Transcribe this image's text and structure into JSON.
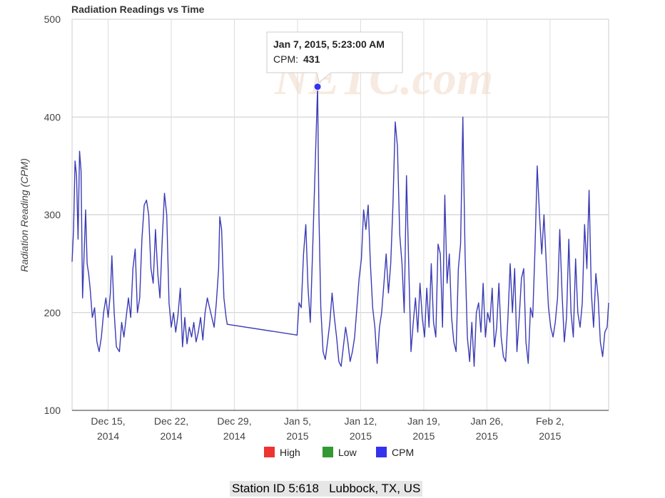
{
  "chart_data": {
    "type": "line",
    "title": "Radiation Readings vs Time",
    "ylabel": "Radiation Reading (CPM)",
    "xlabel": "",
    "ylim": [
      100,
      500
    ],
    "yticks": [
      100,
      200,
      300,
      400,
      500
    ],
    "xlim": [
      "2014-12-11T00:00",
      "2015-02-08T12:00"
    ],
    "xticks": [
      {
        "date": "2014-12-15",
        "label1": "Dec 15,",
        "label2": "2014"
      },
      {
        "date": "2014-12-22",
        "label1": "Dec 22,",
        "label2": "2014"
      },
      {
        "date": "2014-12-29",
        "label1": "Dec 29,",
        "label2": "2014"
      },
      {
        "date": "2015-01-05",
        "label1": "Jan 5,",
        "label2": "2015"
      },
      {
        "date": "2015-01-12",
        "label1": "Jan 12,",
        "label2": "2015"
      },
      {
        "date": "2015-01-19",
        "label1": "Jan 19,",
        "label2": "2015"
      },
      {
        "date": "2015-01-26",
        "label1": "Jan 26,",
        "label2": "2015"
      },
      {
        "date": "2015-02-02",
        "label1": "Feb 2,",
        "label2": "2015"
      }
    ],
    "grid": true,
    "legend": {
      "placement": "bottom",
      "items": [
        {
          "name": "High",
          "color": "#ee3333"
        },
        {
          "name": "Low",
          "color": "#339933"
        },
        {
          "name": "CPM",
          "color": "#3333ee"
        }
      ]
    },
    "series": [
      {
        "name": "CPM",
        "color": "#3b3bb5",
        "points": [
          [
            "2014-12-11T00:00",
            252
          ],
          [
            "2014-12-11T04:00",
            285
          ],
          [
            "2014-12-11T08:00",
            355
          ],
          [
            "2014-12-11T12:00",
            340
          ],
          [
            "2014-12-11T16:00",
            275
          ],
          [
            "2014-12-11T20:00",
            365
          ],
          [
            "2014-12-12T00:00",
            345
          ],
          [
            "2014-12-12T04:00",
            215
          ],
          [
            "2014-12-12T08:00",
            260
          ],
          [
            "2014-12-12T12:00",
            305
          ],
          [
            "2014-12-12T16:00",
            250
          ],
          [
            "2014-12-12T20:00",
            240
          ],
          [
            "2014-12-13T00:00",
            225
          ],
          [
            "2014-12-13T06:00",
            195
          ],
          [
            "2014-12-13T12:00",
            205
          ],
          [
            "2014-12-13T18:00",
            170
          ],
          [
            "2014-12-14T00:00",
            160
          ],
          [
            "2014-12-14T06:00",
            175
          ],
          [
            "2014-12-14T12:00",
            200
          ],
          [
            "2014-12-14T18:00",
            215
          ],
          [
            "2014-12-15T00:00",
            195
          ],
          [
            "2014-12-15T06:00",
            220
          ],
          [
            "2014-12-15T10:00",
            258
          ],
          [
            "2014-12-15T16:00",
            200
          ],
          [
            "2014-12-15T22:00",
            165
          ],
          [
            "2014-12-16T06:00",
            160
          ],
          [
            "2014-12-16T12:00",
            190
          ],
          [
            "2014-12-16T18:00",
            175
          ],
          [
            "2014-12-17T00:00",
            195
          ],
          [
            "2014-12-17T06:00",
            215
          ],
          [
            "2014-12-17T12:00",
            195
          ],
          [
            "2014-12-17T18:00",
            245
          ],
          [
            "2014-12-18T00:00",
            265
          ],
          [
            "2014-12-18T06:00",
            200
          ],
          [
            "2014-12-18T12:00",
            215
          ],
          [
            "2014-12-18T18:00",
            275
          ],
          [
            "2014-12-19T00:00",
            310
          ],
          [
            "2014-12-19T06:00",
            315
          ],
          [
            "2014-12-19T12:00",
            300
          ],
          [
            "2014-12-19T18:00",
            245
          ],
          [
            "2014-12-20T00:00",
            230
          ],
          [
            "2014-12-20T06:00",
            285
          ],
          [
            "2014-12-20T12:00",
            240
          ],
          [
            "2014-12-20T18:00",
            215
          ],
          [
            "2014-12-21T00:00",
            275
          ],
          [
            "2014-12-21T06:00",
            322
          ],
          [
            "2014-12-21T12:00",
            300
          ],
          [
            "2014-12-21T18:00",
            210
          ],
          [
            "2014-12-22T00:00",
            185
          ],
          [
            "2014-12-22T06:00",
            200
          ],
          [
            "2014-12-22T12:00",
            180
          ],
          [
            "2014-12-22T18:00",
            198
          ],
          [
            "2014-12-23T00:00",
            225
          ],
          [
            "2014-12-23T06:00",
            165
          ],
          [
            "2014-12-23T12:00",
            195
          ],
          [
            "2014-12-23T18:00",
            168
          ],
          [
            "2014-12-24T00:00",
            185
          ],
          [
            "2014-12-24T06:00",
            175
          ],
          [
            "2014-12-24T12:00",
            190
          ],
          [
            "2014-12-24T18:00",
            170
          ],
          [
            "2014-12-25T00:00",
            180
          ],
          [
            "2014-12-25T06:00",
            195
          ],
          [
            "2014-12-25T12:00",
            172
          ],
          [
            "2014-12-25T18:00",
            200
          ],
          [
            "2014-12-26T00:00",
            215
          ],
          [
            "2014-12-26T06:00",
            205
          ],
          [
            "2014-12-26T12:00",
            195
          ],
          [
            "2014-12-26T18:00",
            185
          ],
          [
            "2014-12-27T00:00",
            210
          ],
          [
            "2014-12-27T06:00",
            245
          ],
          [
            "2014-12-27T09:00",
            298
          ],
          [
            "2014-12-27T14:00",
            285
          ],
          [
            "2014-12-27T20:00",
            215
          ],
          [
            "2014-12-28T02:00",
            195
          ],
          [
            "2014-12-28T05:00",
            188
          ],
          [
            "2015-01-04T23:00",
            177
          ],
          [
            "2015-01-05T04:00",
            210
          ],
          [
            "2015-01-05T10:00",
            205
          ],
          [
            "2015-01-05T16:00",
            260
          ],
          [
            "2015-01-05T22:00",
            290
          ],
          [
            "2015-01-06T04:00",
            225
          ],
          [
            "2015-01-06T10:00",
            190
          ],
          [
            "2015-01-06T16:00",
            260
          ],
          [
            "2015-01-07T05:23",
            431
          ],
          [
            "2015-01-07T09:00",
            300
          ],
          [
            "2015-01-07T14:00",
            205
          ],
          [
            "2015-01-07T20:00",
            160
          ],
          [
            "2015-01-08T02:00",
            152
          ],
          [
            "2015-01-08T08:00",
            170
          ],
          [
            "2015-01-08T14:00",
            190
          ],
          [
            "2015-01-08T20:00",
            220
          ],
          [
            "2015-01-09T02:00",
            195
          ],
          [
            "2015-01-09T08:00",
            175
          ],
          [
            "2015-01-09T14:00",
            150
          ],
          [
            "2015-01-09T20:00",
            145
          ],
          [
            "2015-01-10T02:00",
            165
          ],
          [
            "2015-01-10T08:00",
            185
          ],
          [
            "2015-01-10T14:00",
            170
          ],
          [
            "2015-01-10T20:00",
            150
          ],
          [
            "2015-01-11T02:00",
            160
          ],
          [
            "2015-01-11T08:00",
            175
          ],
          [
            "2015-01-11T14:00",
            205
          ],
          [
            "2015-01-11T20:00",
            235
          ],
          [
            "2015-01-12T02:00",
            255
          ],
          [
            "2015-01-12T08:00",
            305
          ],
          [
            "2015-01-12T14:00",
            285
          ],
          [
            "2015-01-12T20:00",
            310
          ],
          [
            "2015-01-13T02:00",
            250
          ],
          [
            "2015-01-13T08:00",
            205
          ],
          [
            "2015-01-13T14:00",
            185
          ],
          [
            "2015-01-13T20:00",
            148
          ],
          [
            "2015-01-14T02:00",
            185
          ],
          [
            "2015-01-14T08:00",
            200
          ],
          [
            "2015-01-14T14:00",
            230
          ],
          [
            "2015-01-14T20:00",
            260
          ],
          [
            "2015-01-15T02:00",
            220
          ],
          [
            "2015-01-15T08:00",
            250
          ],
          [
            "2015-01-15T14:00",
            310
          ],
          [
            "2015-01-15T20:00",
            395
          ],
          [
            "2015-01-16T02:00",
            370
          ],
          [
            "2015-01-16T08:00",
            280
          ],
          [
            "2015-01-16T14:00",
            250
          ],
          [
            "2015-01-16T20:00",
            200
          ],
          [
            "2015-01-17T02:00",
            340
          ],
          [
            "2015-01-17T08:00",
            250
          ],
          [
            "2015-01-17T14:00",
            160
          ],
          [
            "2015-01-17T20:00",
            190
          ],
          [
            "2015-01-18T02:00",
            215
          ],
          [
            "2015-01-18T08:00",
            180
          ],
          [
            "2015-01-18T14:00",
            230
          ],
          [
            "2015-01-18T20:00",
            195
          ],
          [
            "2015-01-19T02:00",
            175
          ],
          [
            "2015-01-19T08:00",
            225
          ],
          [
            "2015-01-19T14:00",
            185
          ],
          [
            "2015-01-19T20:00",
            250
          ],
          [
            "2015-01-20T02:00",
            190
          ],
          [
            "2015-01-20T08:00",
            175
          ],
          [
            "2015-01-20T14:00",
            270
          ],
          [
            "2015-01-20T20:00",
            260
          ],
          [
            "2015-01-21T02:00",
            185
          ],
          [
            "2015-01-21T08:00",
            320
          ],
          [
            "2015-01-21T14:00",
            230
          ],
          [
            "2015-01-21T20:00",
            260
          ],
          [
            "2015-01-22T02:00",
            195
          ],
          [
            "2015-01-22T08:00",
            170
          ],
          [
            "2015-01-22T14:00",
            160
          ],
          [
            "2015-01-22T20:00",
            245
          ],
          [
            "2015-01-23T02:00",
            270
          ],
          [
            "2015-01-23T08:00",
            400
          ],
          [
            "2015-01-23T14:00",
            260
          ],
          [
            "2015-01-23T20:00",
            175
          ],
          [
            "2015-01-24T02:00",
            150
          ],
          [
            "2015-01-24T08:00",
            190
          ],
          [
            "2015-01-24T14:00",
            145
          ],
          [
            "2015-01-24T20:00",
            200
          ],
          [
            "2015-01-25T02:00",
            210
          ],
          [
            "2015-01-25T08:00",
            180
          ],
          [
            "2015-01-25T14:00",
            230
          ],
          [
            "2015-01-25T20:00",
            175
          ],
          [
            "2015-01-26T02:00",
            200
          ],
          [
            "2015-01-26T08:00",
            190
          ],
          [
            "2015-01-26T14:00",
            225
          ],
          [
            "2015-01-26T20:00",
            165
          ],
          [
            "2015-01-27T02:00",
            185
          ],
          [
            "2015-01-27T08:00",
            230
          ],
          [
            "2015-01-27T14:00",
            175
          ],
          [
            "2015-01-27T20:00",
            155
          ],
          [
            "2015-01-28T02:00",
            150
          ],
          [
            "2015-01-28T08:00",
            195
          ],
          [
            "2015-01-28T14:00",
            250
          ],
          [
            "2015-01-28T20:00",
            200
          ],
          [
            "2015-01-29T02:00",
            245
          ],
          [
            "2015-01-29T08:00",
            160
          ],
          [
            "2015-01-29T14:00",
            195
          ],
          [
            "2015-01-29T20:00",
            235
          ],
          [
            "2015-01-30T02:00",
            245
          ],
          [
            "2015-01-30T08:00",
            170
          ],
          [
            "2015-01-30T14:00",
            148
          ],
          [
            "2015-01-30T20:00",
            205
          ],
          [
            "2015-01-31T02:00",
            195
          ],
          [
            "2015-01-31T08:00",
            265
          ],
          [
            "2015-01-31T14:00",
            350
          ],
          [
            "2015-01-31T20:00",
            300
          ],
          [
            "2015-02-01T02:00",
            260
          ],
          [
            "2015-02-01T08:00",
            300
          ],
          [
            "2015-02-01T14:00",
            250
          ],
          [
            "2015-02-01T20:00",
            205
          ],
          [
            "2015-02-02T02:00",
            185
          ],
          [
            "2015-02-02T08:00",
            175
          ],
          [
            "2015-02-02T14:00",
            190
          ],
          [
            "2015-02-02T20:00",
            215
          ],
          [
            "2015-02-03T02:00",
            285
          ],
          [
            "2015-02-03T08:00",
            220
          ],
          [
            "2015-02-03T14:00",
            170
          ],
          [
            "2015-02-03T20:00",
            195
          ],
          [
            "2015-02-04T02:00",
            275
          ],
          [
            "2015-02-04T08:00",
            200
          ],
          [
            "2015-02-04T14:00",
            175
          ],
          [
            "2015-02-04T20:00",
            255
          ],
          [
            "2015-02-05T02:00",
            200
          ],
          [
            "2015-02-05T08:00",
            185
          ],
          [
            "2015-02-05T14:00",
            210
          ],
          [
            "2015-02-05T20:00",
            290
          ],
          [
            "2015-02-06T02:00",
            245
          ],
          [
            "2015-02-06T08:00",
            325
          ],
          [
            "2015-02-06T14:00",
            220
          ],
          [
            "2015-02-06T20:00",
            185
          ],
          [
            "2015-02-07T02:00",
            240
          ],
          [
            "2015-02-07T08:00",
            215
          ],
          [
            "2015-02-07T14:00",
            170
          ],
          [
            "2015-02-07T20:00",
            155
          ],
          [
            "2015-02-08T02:00",
            180
          ],
          [
            "2015-02-08T08:00",
            185
          ],
          [
            "2015-02-08T12:00",
            210
          ]
        ]
      }
    ],
    "tooltip": {
      "x": "2015-01-07T05:23",
      "y": 431,
      "title": "Jan 7, 2015, 5:23:00 AM",
      "label": "CPM:",
      "value": "431"
    },
    "watermark": "NETC.com"
  },
  "footer": {
    "station": "Station ID 5:618   Lubbock, TX, US"
  }
}
